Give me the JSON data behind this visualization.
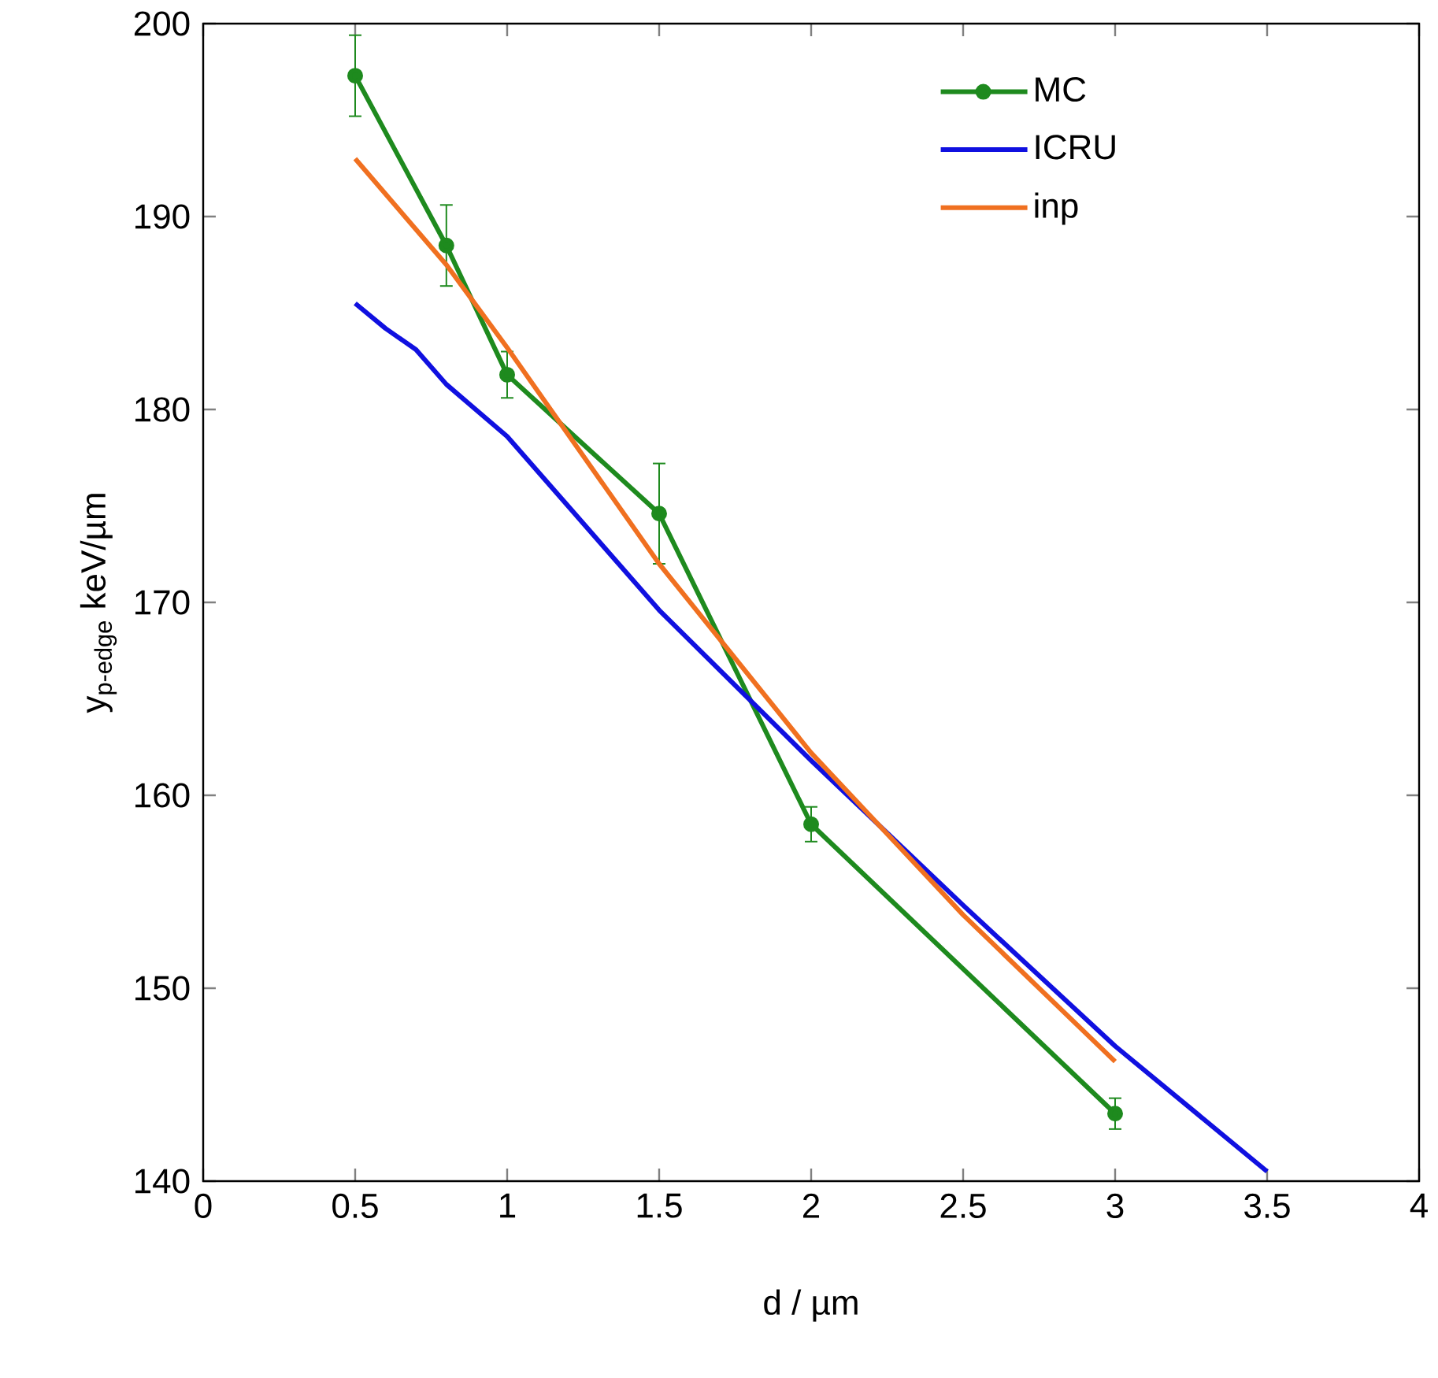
{
  "chart_data": {
    "type": "line",
    "xlabel": "d / µm",
    "ylabel": "y$_{p-edge}$ keV/µm",
    "xlim": [
      0,
      4
    ],
    "xticks": [
      0,
      0.5,
      1,
      1.5,
      2,
      2.5,
      3,
      3.5,
      4
    ],
    "ylim": [
      140,
      200
    ],
    "yticks": [
      140,
      150,
      160,
      170,
      180,
      190,
      200
    ],
    "grid": false,
    "legend": "top right",
    "series": [
      {
        "name": "MC",
        "color": "#1e8a1e",
        "marker": "circle",
        "x": [
          0.5,
          0.8,
          1,
          1.5,
          2,
          3
        ],
        "values": [
          197.3,
          188.5,
          181.8,
          174.6,
          158.5,
          143.5
        ],
        "errors": [
          2.1,
          2.1,
          1.2,
          2.6,
          0.9,
          0.8
        ]
      },
      {
        "name": "ICRU",
        "color": "#1010e0",
        "marker": "none",
        "x": [
          0.5,
          0.6,
          0.7,
          0.8,
          1,
          1.5,
          2,
          2.5,
          3,
          3.5
        ],
        "values": [
          185.5,
          184.2,
          183.1,
          181.3,
          178.6,
          169.6,
          161.8,
          154.3,
          147,
          140.5
        ]
      },
      {
        "name": "inp",
        "color": "#f07020",
        "marker": "none",
        "x": [
          0.5,
          0.8,
          1,
          1.5,
          2,
          2.5,
          3
        ],
        "values": [
          193,
          187.5,
          183.2,
          172,
          162.2,
          153.8,
          146.2
        ]
      }
    ]
  }
}
